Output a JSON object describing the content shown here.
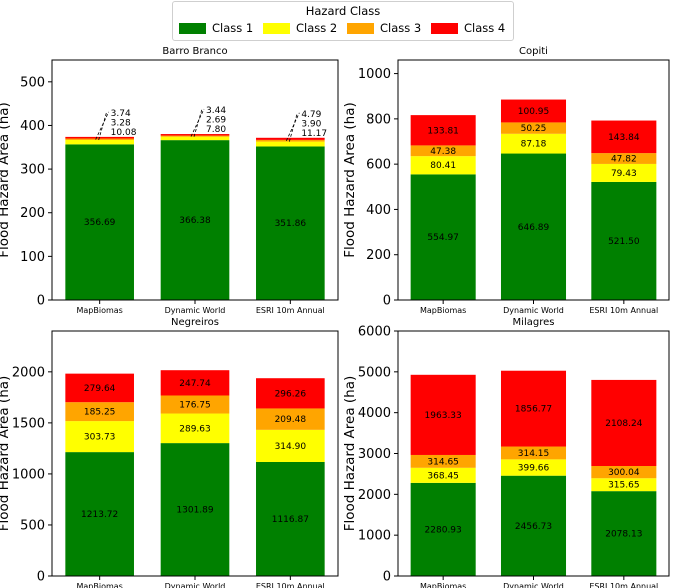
{
  "legend": {
    "title": "Hazard Class",
    "entries": [
      {
        "label": "Class 1",
        "color": "#008000"
      },
      {
        "label": "Class 2",
        "color": "#ffff00"
      },
      {
        "label": "Class 3",
        "color": "#ffa500"
      },
      {
        "label": "Class 4",
        "color": "#ff0000"
      }
    ]
  },
  "chart_data": [
    {
      "type": "bar",
      "stacked": true,
      "title": "Barro Branco",
      "ylabel": "Flood Hazard Area (ha)",
      "xlabel": "",
      "categories": [
        "MapBiomas",
        "Dynamic World",
        "ESRI 10m Annual"
      ],
      "ylim": [
        0,
        550
      ],
      "yticks": [
        0,
        100,
        200,
        300,
        400,
        500
      ],
      "series": [
        {
          "name": "Class 1",
          "values": [
            356.69,
            366.38,
            351.86
          ],
          "labels": [
            "356.69",
            "366.38",
            "351.86"
          ]
        },
        {
          "name": "Class 2",
          "values": [
            10.08,
            7.8,
            11.17
          ],
          "labels": [
            "10.08",
            "7.80",
            "11.17"
          ]
        },
        {
          "name": "Class 3",
          "values": [
            3.28,
            2.69,
            3.9
          ],
          "labels": [
            "3.28",
            "2.69",
            "3.90"
          ]
        },
        {
          "name": "Class 4",
          "values": [
            3.74,
            3.44,
            4.79
          ],
          "labels": [
            "3.74",
            "3.44",
            "4.79"
          ]
        }
      ],
      "small_value_callouts": true
    },
    {
      "type": "bar",
      "stacked": true,
      "title": "Copiti",
      "ylabel": "Flood Hazard Area (ha)",
      "xlabel": "",
      "categories": [
        "MapBiomas",
        "Dynamic World",
        "ESRI 10m Annual"
      ],
      "ylim": [
        0,
        1060
      ],
      "yticks": [
        0,
        200,
        400,
        600,
        800,
        1000
      ],
      "series": [
        {
          "name": "Class 1",
          "values": [
            554.97,
            646.89,
            521.5
          ],
          "labels": [
            "554.97",
            "646.89",
            "521.50"
          ]
        },
        {
          "name": "Class 2",
          "values": [
            80.41,
            87.18,
            79.43
          ],
          "labels": [
            "80.41",
            "87.18",
            "79.43"
          ]
        },
        {
          "name": "Class 3",
          "values": [
            47.38,
            50.25,
            47.82
          ],
          "labels": [
            "47.38",
            "50.25",
            "47.82"
          ]
        },
        {
          "name": "Class 4",
          "values": [
            133.81,
            100.95,
            143.84
          ],
          "labels": [
            "133.81",
            "100.95",
            "143.84"
          ]
        }
      ]
    },
    {
      "type": "bar",
      "stacked": true,
      "title": "Negreiros",
      "ylabel": "Flood Hazard Area (ha)",
      "xlabel": "",
      "categories": [
        "MapBiomas",
        "Dynamic World",
        "ESRI 10m Annual"
      ],
      "ylim": [
        0,
        2400
      ],
      "yticks": [
        0,
        500,
        1000,
        1500,
        2000
      ],
      "series": [
        {
          "name": "Class 1",
          "values": [
            1213.72,
            1301.89,
            1116.87
          ],
          "labels": [
            "1213.72",
            "1301.89",
            "1116.87"
          ]
        },
        {
          "name": "Class 2",
          "values": [
            303.73,
            289.63,
            314.9
          ],
          "labels": [
            "303.73",
            "289.63",
            "314.90"
          ]
        },
        {
          "name": "Class 3",
          "values": [
            185.25,
            176.75,
            209.48
          ],
          "labels": [
            "185.25",
            "176.75",
            "209.48"
          ]
        },
        {
          "name": "Class 4",
          "values": [
            279.64,
            247.74,
            296.26
          ],
          "labels": [
            "279.64",
            "247.74",
            "296.26"
          ]
        }
      ]
    },
    {
      "type": "bar",
      "stacked": true,
      "title": "Milagres",
      "ylabel": "Flood Hazard Area (ha)",
      "xlabel": "",
      "categories": [
        "MapBiomas",
        "Dynamic World",
        "ESRI 10m Annual"
      ],
      "ylim": [
        0,
        6000
      ],
      "yticks": [
        0,
        1000,
        2000,
        3000,
        4000,
        5000,
        6000
      ],
      "series": [
        {
          "name": "Class 1",
          "values": [
            2280.93,
            2456.73,
            2078.13
          ],
          "labels": [
            "2280.93",
            "2456.73",
            "2078.13"
          ]
        },
        {
          "name": "Class 2",
          "values": [
            368.45,
            399.66,
            315.65
          ],
          "labels": [
            "368.45",
            "399.66",
            "315.65"
          ]
        },
        {
          "name": "Class 3",
          "values": [
            314.65,
            314.15,
            300.04
          ],
          "labels": [
            "314.65",
            "314.15",
            "300.04"
          ]
        },
        {
          "name": "Class 4",
          "values": [
            1963.33,
            1856.77,
            2108.24
          ],
          "labels": [
            "1963.33",
            "1856.77",
            "2108.24"
          ]
        }
      ]
    }
  ]
}
